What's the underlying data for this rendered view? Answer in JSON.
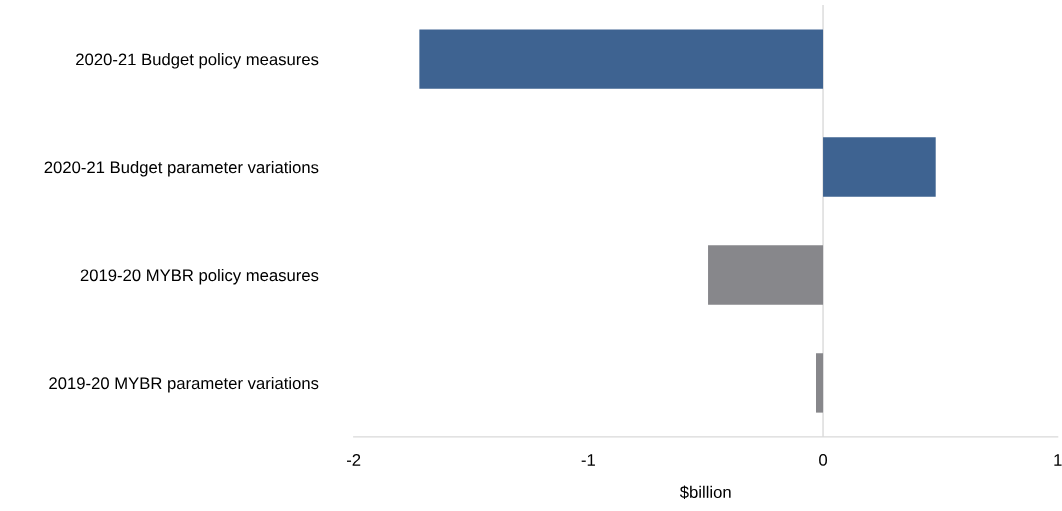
{
  "chart_data": {
    "type": "bar",
    "orientation": "horizontal",
    "categories": [
      "2020-21 Budget policy measures",
      "2020-21 Budget parameter variations",
      "2019-20 MYBR policy measures",
      "2019-20 MYBR parameter variations"
    ],
    "values": [
      -1.72,
      0.48,
      -0.49,
      -0.03
    ],
    "colors": [
      "#3e6391",
      "#3e6391",
      "#87878b",
      "#87878b"
    ],
    "xlabel": "$billion",
    "xlim": [
      -2,
      1
    ],
    "xticks": [
      -2,
      -1,
      0,
      1
    ],
    "ref_lines": [
      {
        "axis": "x",
        "value": 0,
        "color": "#d9d9d9"
      }
    ],
    "grid": false,
    "legend": false
  }
}
